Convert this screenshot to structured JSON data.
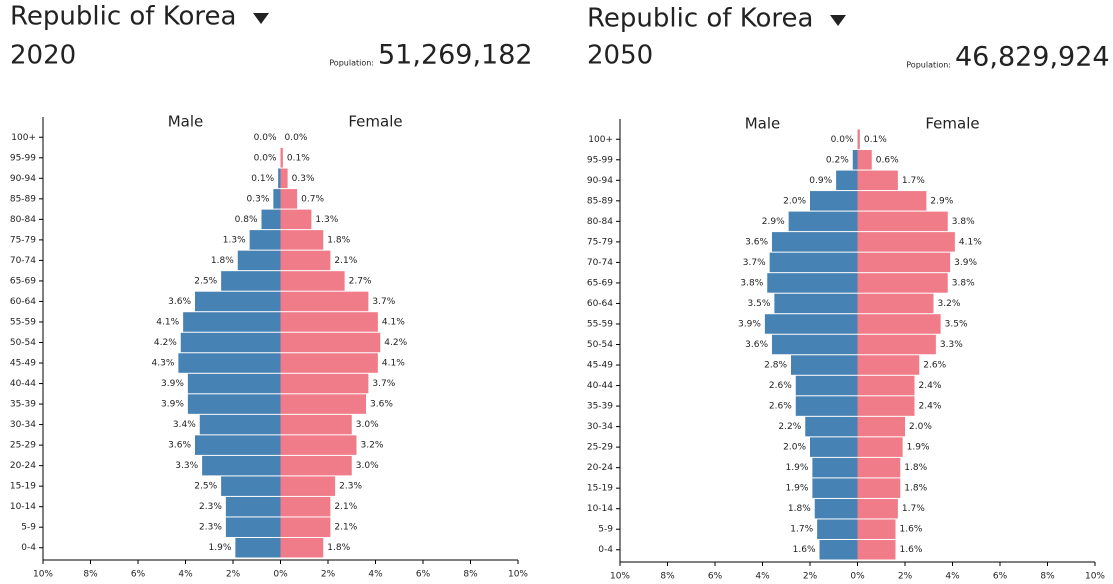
{
  "chart_data": [
    {
      "type": "pyramid",
      "title": "Republic of Korea",
      "year": "2020",
      "population_label": "Population:",
      "population": "51,269,182",
      "categories": [
        "100+",
        "95-99",
        "90-94",
        "85-89",
        "80-84",
        "75-79",
        "70-74",
        "65-69",
        "60-64",
        "55-59",
        "50-54",
        "45-49",
        "40-44",
        "35-39",
        "30-34",
        "25-29",
        "20-24",
        "15-19",
        "10-14",
        "5-9",
        "0-4"
      ],
      "series": [
        {
          "name": "Male",
          "color": "#4682b4",
          "side": "left",
          "values": [
            0.0,
            0.0,
            0.1,
            0.3,
            0.8,
            1.3,
            1.8,
            2.5,
            3.6,
            4.1,
            4.2,
            4.3,
            3.9,
            3.9,
            3.4,
            3.6,
            3.3,
            2.5,
            2.3,
            2.3,
            1.9
          ],
          "value_labels": [
            "0.0%",
            "0.0%",
            "0.1%",
            "0.3%",
            "0.8%",
            "1.3%",
            "1.8%",
            "2.5%",
            "3.6%",
            "4.1%",
            "4.2%",
            "4.3%",
            "3.9%",
            "3.9%",
            "3.4%",
            "3.6%",
            "3.3%",
            "2.5%",
            "2.3%",
            "2.3%",
            "1.9%"
          ]
        },
        {
          "name": "Female",
          "color": "#f07c89",
          "side": "right",
          "values": [
            0.0,
            0.1,
            0.3,
            0.7,
            1.3,
            1.8,
            2.1,
            2.7,
            3.7,
            4.1,
            4.2,
            4.1,
            3.7,
            3.6,
            3.0,
            3.2,
            3.0,
            2.3,
            2.1,
            2.1,
            1.8
          ],
          "value_labels": [
            "0.0%",
            "0.1%",
            "0.3%",
            "0.7%",
            "1.3%",
            "1.8%",
            "2.1%",
            "2.7%",
            "3.7%",
            "4.1%",
            "4.2%",
            "4.1%",
            "3.7%",
            "3.6%",
            "3.0%",
            "3.2%",
            "3.0%",
            "2.3%",
            "2.1%",
            "2.1%",
            "1.8%"
          ]
        }
      ],
      "xlim": [
        -10,
        10
      ],
      "xticks": [
        {
          "value": -10,
          "label": "10%"
        },
        {
          "value": -8,
          "label": "8%"
        },
        {
          "value": -6,
          "label": "6%"
        },
        {
          "value": -4,
          "label": "4%"
        },
        {
          "value": -2,
          "label": "2%"
        },
        {
          "value": 0,
          "label": "0%"
        },
        {
          "value": 2,
          "label": "2%"
        },
        {
          "value": 4,
          "label": "4%"
        },
        {
          "value": 6,
          "label": "6%"
        },
        {
          "value": 8,
          "label": "8%"
        },
        {
          "value": 10,
          "label": "10%"
        }
      ]
    },
    {
      "type": "pyramid",
      "title": "Republic of Korea",
      "year": "2050",
      "population_label": "Population:",
      "population": "46,829,924",
      "categories": [
        "100+",
        "95-99",
        "90-94",
        "85-89",
        "80-84",
        "75-79",
        "70-74",
        "65-69",
        "60-64",
        "55-59",
        "50-54",
        "45-49",
        "40-44",
        "35-39",
        "30-34",
        "25-29",
        "20-24",
        "15-19",
        "10-14",
        "5-9",
        "0-4"
      ],
      "series": [
        {
          "name": "Male",
          "color": "#4682b4",
          "side": "left",
          "values": [
            0.0,
            0.2,
            0.9,
            2.0,
            2.9,
            3.6,
            3.7,
            3.8,
            3.5,
            3.9,
            3.6,
            2.8,
            2.6,
            2.6,
            2.2,
            2.0,
            1.9,
            1.9,
            1.8,
            1.7,
            1.6
          ],
          "value_labels": [
            "0.0%",
            "0.2%",
            "0.9%",
            "2.0%",
            "2.9%",
            "3.6%",
            "3.7%",
            "3.8%",
            "3.5%",
            "3.9%",
            "3.6%",
            "2.8%",
            "2.6%",
            "2.6%",
            "2.2%",
            "2.0%",
            "1.9%",
            "1.9%",
            "1.8%",
            "1.7%",
            "1.6%"
          ]
        },
        {
          "name": "Female",
          "color": "#f07c89",
          "side": "right",
          "values": [
            0.1,
            0.6,
            1.7,
            2.9,
            3.8,
            4.1,
            3.9,
            3.8,
            3.2,
            3.5,
            3.3,
            2.6,
            2.4,
            2.4,
            2.0,
            1.9,
            1.8,
            1.8,
            1.7,
            1.6,
            1.6
          ],
          "value_labels": [
            "0.1%",
            "0.6%",
            "1.7%",
            "2.9%",
            "3.8%",
            "4.1%",
            "3.9%",
            "3.8%",
            "3.2%",
            "3.5%",
            "3.3%",
            "2.6%",
            "2.4%",
            "2.4%",
            "2.0%",
            "1.9%",
            "1.8%",
            "1.8%",
            "1.7%",
            "1.6%",
            "1.6%"
          ]
        }
      ],
      "xlim": [
        -10,
        10
      ],
      "xticks": [
        {
          "value": -10,
          "label": "10%"
        },
        {
          "value": -8,
          "label": "8%"
        },
        {
          "value": -6,
          "label": "6%"
        },
        {
          "value": -4,
          "label": "4%"
        },
        {
          "value": -2,
          "label": "2%"
        },
        {
          "value": 0,
          "label": "0%"
        },
        {
          "value": 2,
          "label": "2%"
        },
        {
          "value": 4,
          "label": "4%"
        },
        {
          "value": 6,
          "label": "6%"
        },
        {
          "value": 8,
          "label": "8%"
        },
        {
          "value": 10,
          "label": "10%"
        }
      ]
    }
  ]
}
